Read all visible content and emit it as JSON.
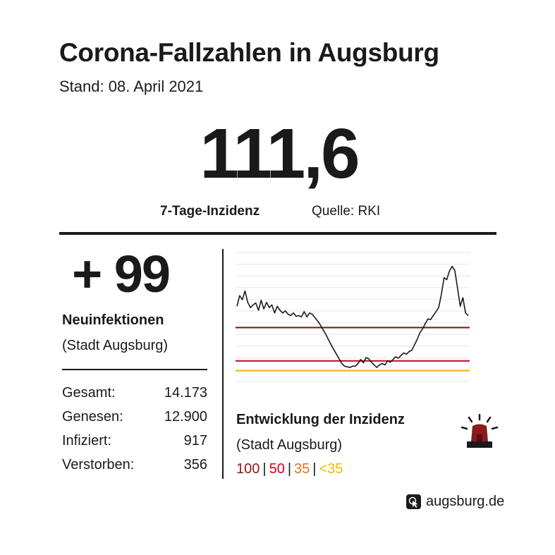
{
  "header": {
    "title": "Corona-Fallzahlen in Augsburg",
    "date": "Stand: 08. April 2021"
  },
  "incidence": {
    "value": "111,6",
    "label": "7-Tage-Inzidenz",
    "source": "Quelle: RKI"
  },
  "new_infections": {
    "value": "+ 99",
    "label": "Neuinfektionen",
    "sublabel": "(Stadt Augsburg)"
  },
  "stats": [
    {
      "label": "Gesamt:",
      "value": "14.173"
    },
    {
      "label": "Genesen:",
      "value": "12.900"
    },
    {
      "label": "Infiziert:",
      "value": "917"
    },
    {
      "label": "Verstorben:",
      "value": "356"
    }
  ],
  "chart_section": {
    "title": "Entwicklung der Inzidenz",
    "subtitle": "(Stadt Augsburg)",
    "legend": [
      {
        "label": "100",
        "color": "#8b1a1a"
      },
      {
        "label": "50",
        "color": "#d0021b"
      },
      {
        "label": "35",
        "color": "#e8711c"
      },
      {
        "label": "<35",
        "color": "#f5b800"
      }
    ]
  },
  "chart_data": {
    "type": "line",
    "title": "",
    "xlabel": "",
    "ylabel": "",
    "ylim": [
      20,
      215
    ],
    "grid": true,
    "thresholds": [
      {
        "value": 100,
        "color": "#6b1414"
      },
      {
        "value": 50,
        "color": "#d0021b"
      },
      {
        "value": 35,
        "color": "#f5b800"
      }
    ],
    "series": [
      {
        "color": "#1a1a1a",
        "values": [
          132,
          148,
          142,
          155,
          138,
          130,
          134,
          137,
          126,
          141,
          128,
          138,
          130,
          134,
          122,
          132,
          126,
          122,
          125,
          120,
          118,
          122,
          117,
          118,
          116,
          124,
          116,
          122,
          120,
          115,
          110,
          104,
          97,
          90,
          82,
          74,
          67,
          60,
          53,
          46,
          42,
          41,
          40,
          42,
          42,
          46,
          52,
          47,
          55,
          53,
          48,
          44,
          40,
          44,
          46,
          44,
          50,
          48,
          52,
          56,
          54,
          58,
          62,
          60,
          64,
          66,
          74,
          82,
          92,
          98,
          106,
          113,
          112,
          118,
          124,
          130,
          150,
          175,
          172,
          185,
          192,
          186,
          160,
          132,
          145,
          122,
          118
        ]
      }
    ]
  },
  "footer": {
    "brand": "augsburg.de",
    "icon": "cursor-click-icon"
  }
}
